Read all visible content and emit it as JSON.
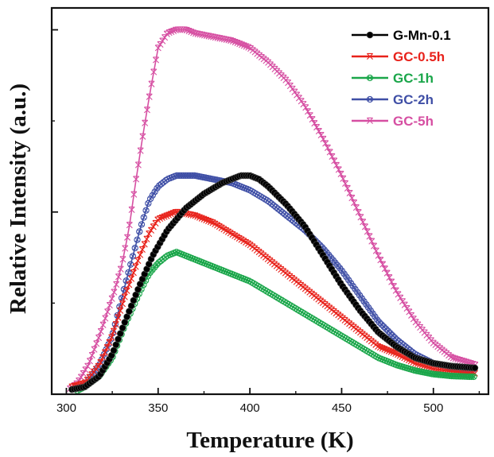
{
  "chart_data": {
    "type": "scatter",
    "title": "",
    "xlabel": "Temperature (K)",
    "ylabel": "Relative Intensity (a.u.)",
    "xlim": [
      292,
      530
    ],
    "ylim": [
      0,
      1.06
    ],
    "xticks": [
      300,
      350,
      400,
      450,
      500
    ],
    "xtick_labels": [
      "300",
      "350",
      "400",
      "450",
      "500"
    ],
    "y_tick_labels_shown": false,
    "grid": false,
    "legend_position": "top-right",
    "series": [
      {
        "name": "G-Mn-0.1",
        "color": "#000000",
        "marker": "filled-circle",
        "x": [
          303,
          310,
          318,
          325,
          332,
          340,
          347,
          355,
          365,
          375,
          385,
          395,
          400,
          405,
          410,
          420,
          430,
          440,
          450,
          460,
          470,
          480,
          490,
          500,
          510,
          520,
          523
        ],
        "y": [
          0.013,
          0.02,
          0.05,
          0.11,
          0.2,
          0.3,
          0.38,
          0.45,
          0.51,
          0.55,
          0.58,
          0.6,
          0.6,
          0.59,
          0.57,
          0.52,
          0.46,
          0.38,
          0.3,
          0.23,
          0.17,
          0.13,
          0.1,
          0.085,
          0.077,
          0.073,
          0.072
        ]
      },
      {
        "name": "GC-0.5h",
        "color": "#e8221b",
        "marker": "x-cross",
        "x": [
          303,
          310,
          318,
          325,
          332,
          340,
          345,
          350,
          355,
          360,
          370,
          380,
          390,
          400,
          410,
          420,
          430,
          440,
          450,
          460,
          470,
          480,
          490,
          500,
          510,
          520,
          523
        ],
        "y": [
          0.02,
          0.03,
          0.08,
          0.16,
          0.27,
          0.38,
          0.44,
          0.48,
          0.49,
          0.5,
          0.49,
          0.47,
          0.44,
          0.41,
          0.37,
          0.33,
          0.29,
          0.25,
          0.21,
          0.17,
          0.13,
          0.11,
          0.085,
          0.07,
          0.062,
          0.058,
          0.057
        ]
      },
      {
        "name": "GC-1h",
        "color": "#1aa64a",
        "marker": "circle-x",
        "x": [
          306,
          310,
          318,
          325,
          332,
          340,
          345,
          350,
          355,
          360,
          365,
          370,
          380,
          390,
          400,
          410,
          420,
          430,
          440,
          450,
          460,
          470,
          480,
          490,
          500,
          510,
          520,
          523
        ],
        "y": [
          0.01,
          0.02,
          0.05,
          0.1,
          0.19,
          0.28,
          0.33,
          0.36,
          0.38,
          0.39,
          0.38,
          0.37,
          0.35,
          0.33,
          0.31,
          0.28,
          0.25,
          0.22,
          0.19,
          0.16,
          0.13,
          0.1,
          0.08,
          0.065,
          0.055,
          0.05,
          0.048,
          0.048
        ]
      },
      {
        "name": "GC-2h",
        "color": "#3f4fa6",
        "marker": "circle-x",
        "x": [
          305,
          310,
          318,
          325,
          332,
          340,
          345,
          350,
          355,
          360,
          365,
          370,
          380,
          390,
          400,
          410,
          420,
          430,
          440,
          450,
          460,
          470,
          480,
          490,
          500,
          510,
          520,
          523
        ],
        "y": [
          0.015,
          0.025,
          0.08,
          0.16,
          0.3,
          0.45,
          0.53,
          0.57,
          0.59,
          0.6,
          0.6,
          0.6,
          0.59,
          0.58,
          0.56,
          0.53,
          0.49,
          0.45,
          0.4,
          0.34,
          0.27,
          0.2,
          0.15,
          0.11,
          0.085,
          0.072,
          0.066,
          0.065
        ]
      },
      {
        "name": "GC-5h",
        "color": "#d64fa2",
        "marker": "x-cross",
        "x": [
          302,
          306,
          312,
          318,
          322,
          326,
          330,
          334,
          338,
          342,
          346,
          350,
          355,
          360,
          365,
          370,
          380,
          390,
          400,
          410,
          420,
          430,
          440,
          450,
          460,
          470,
          480,
          490,
          500,
          510,
          520,
          523
        ],
        "y": [
          0.015,
          0.03,
          0.08,
          0.16,
          0.22,
          0.28,
          0.35,
          0.45,
          0.59,
          0.72,
          0.84,
          0.95,
          0.99,
          1.0,
          1.0,
          0.99,
          0.98,
          0.97,
          0.95,
          0.91,
          0.86,
          0.79,
          0.7,
          0.6,
          0.49,
          0.38,
          0.28,
          0.2,
          0.14,
          0.1,
          0.085,
          0.08
        ]
      }
    ]
  }
}
